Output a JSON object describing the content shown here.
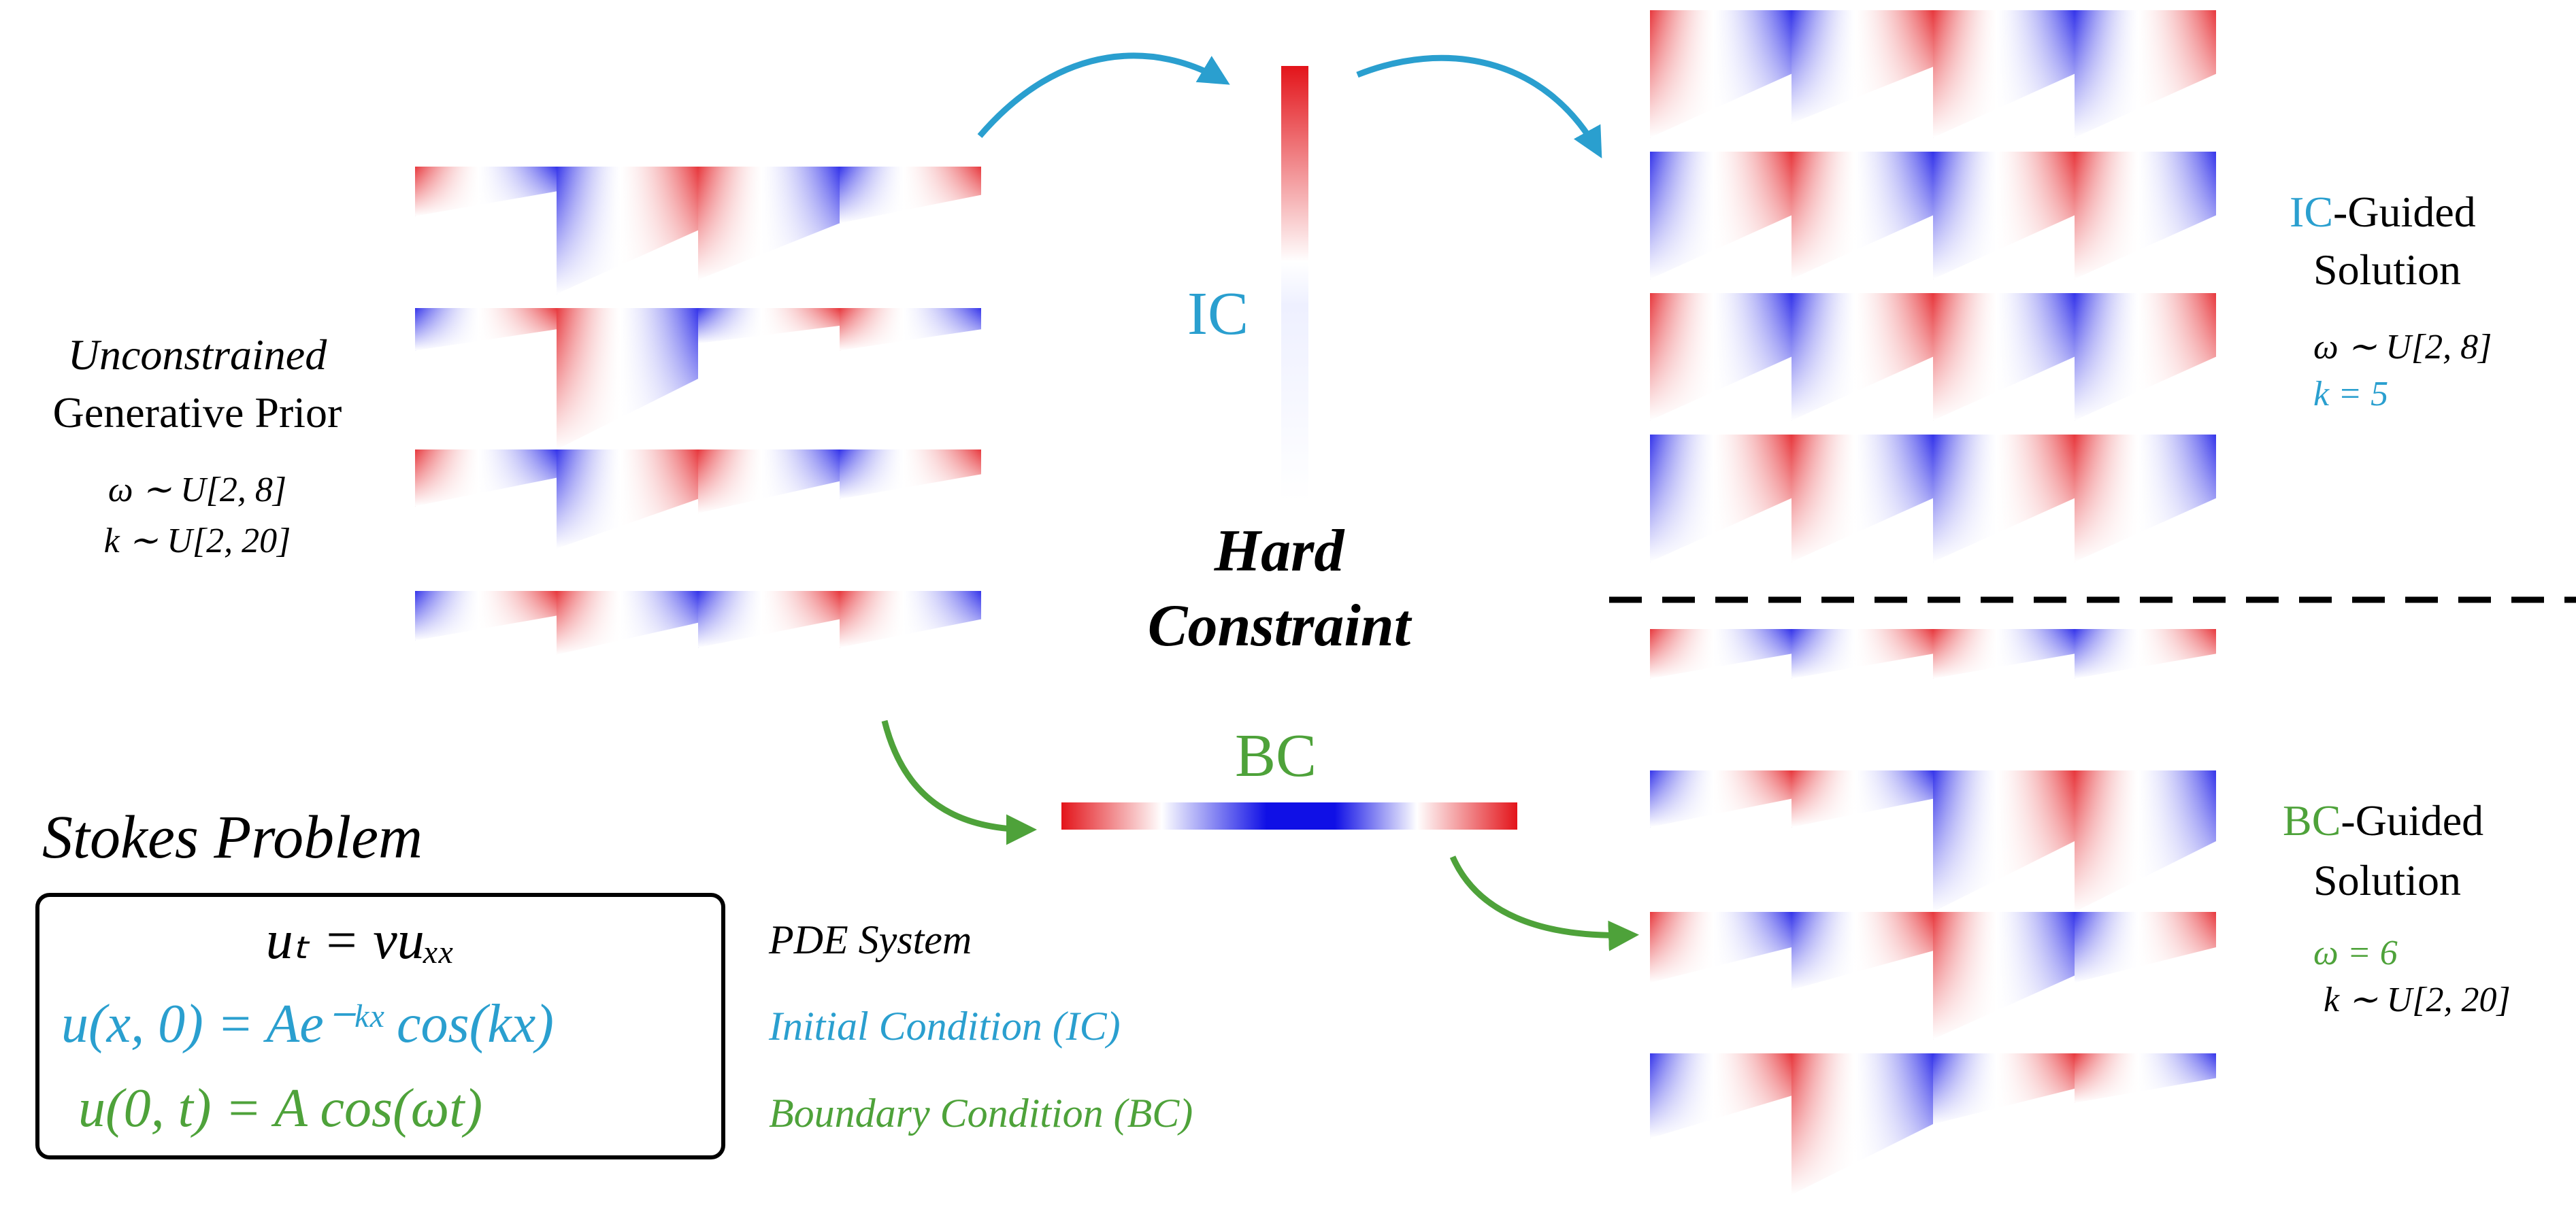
{
  "left": {
    "line1": "Unconstrained",
    "line2": "Generative Prior",
    "param1": "ω ∼ U[2, 8]",
    "param2": "k ∼ U[2, 20]"
  },
  "center": {
    "ic_label": "IC",
    "hard1": "Hard",
    "hard2": "Constraint",
    "bc_label": "BC"
  },
  "ic_solution": {
    "prefix": "IC",
    "line1_rest": "-Guided",
    "line2": "Solution",
    "param1": "ω ∼ U[2, 8]",
    "param2": "k = 5"
  },
  "bc_solution": {
    "prefix": "BC",
    "line1_rest": "-Guided",
    "line2": "Solution",
    "param1": "ω = 6",
    "param2": "k ∼ U[2, 20]"
  },
  "problem": {
    "title": "Stokes Problem",
    "eq_pde": "uₜ = νuₓₓ",
    "eq_ic": "u(x, 0) = Ae⁻ᵏˣ cos(kx)",
    "eq_bc": "u(0, t) = A cos(ωt)",
    "lab_pde": "PDE System",
    "lab_ic": "Initial Condition (IC)",
    "lab_bc": "Boundary Condition (BC)"
  },
  "colors": {
    "ic": "#2a9fcf",
    "bc": "#4ea23a",
    "red": "#e3141a",
    "blue": "#1010e6",
    "text": "#000000"
  }
}
